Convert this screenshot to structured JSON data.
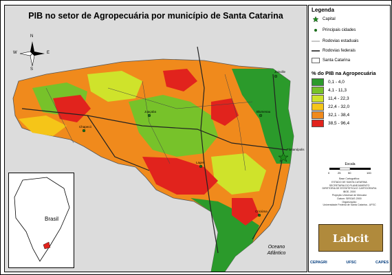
{
  "map": {
    "title": "PIB no setor de Agropecuária por município de Santa Catarina",
    "inset_label": "Brasil",
    "ocean_label_1": "Oceano",
    "ocean_label_2": "Atlântico",
    "compass_letters": {
      "n": "N",
      "s": "S",
      "e": "E",
      "w": "W"
    },
    "city_labels": [
      "Joinville",
      "Blumenau",
      "Florianópolis",
      "Lages",
      "Criciúma",
      "Chapecó",
      "Joaçaba"
    ]
  },
  "legend": {
    "title": "Legenda",
    "items": [
      {
        "label": "Capital",
        "icon": "star-icon"
      },
      {
        "label": "Principais cidades",
        "icon": "dot-icon"
      },
      {
        "label": "Rodovias estaduais",
        "icon": "thin-line-icon"
      },
      {
        "label": "Rodovias federais",
        "icon": "thick-line-icon"
      },
      {
        "label": "Santa Catarina",
        "icon": "outline-box-icon"
      }
    ],
    "classes_title": "% do PIB na Agropecuária",
    "classes": [
      {
        "label": "0,1 - 4,0",
        "color": "#2b9a2b"
      },
      {
        "label": "4,1 - 11,3",
        "color": "#77c22a"
      },
      {
        "label": "11,4 - 22,3",
        "color": "#cfe32b"
      },
      {
        "label": "22,4 - 32,0",
        "color": "#f5c518"
      },
      {
        "label": "32,1 - 38,4",
        "color": "#f08a1c"
      },
      {
        "label": "38,5 - 96,4",
        "color": "#e1231d"
      }
    ],
    "scale_label": "Escala",
    "scale_ticks": [
      "0",
      "25",
      "50",
      "100"
    ],
    "credits": [
      "Base Cartográfica:",
      "ESTADO DE SANTA CATARINA",
      "SECRETARIA DO PLANEJAMENTO",
      "DIRETORIA DE ESTATÍSTICA E CARTOGRAFIA",
      "IBGE, 2000",
      "Projeção Universal de Mercator",
      "Datum: SIRGAS 2000",
      "Organização:",
      "Universidade Federal de Santa Catarina - UFSC"
    ],
    "logo_text": "Labcit",
    "bottom_logos": [
      "CEPAGRI",
      "UFSC",
      "CAPES"
    ]
  }
}
